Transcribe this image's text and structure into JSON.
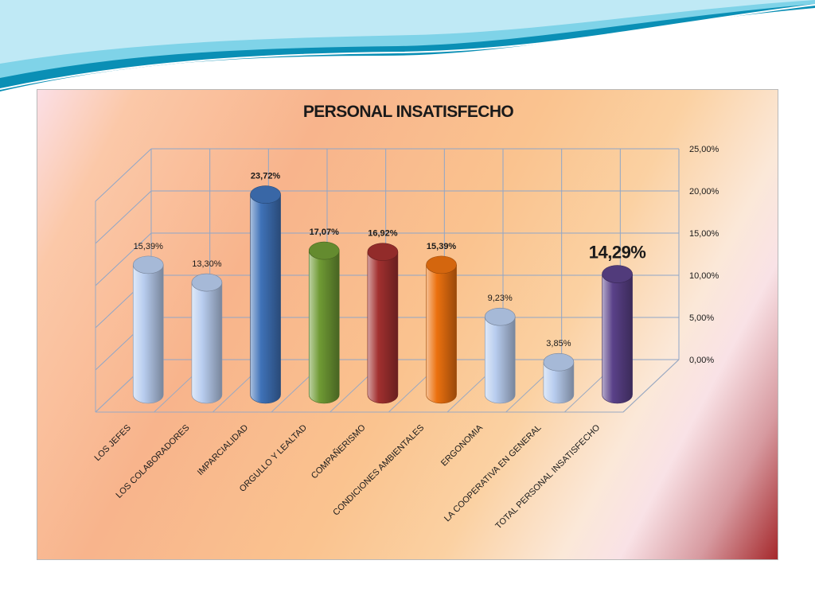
{
  "slide": {
    "wave_colors": [
      "#0a8fb5",
      "#7fd3e8",
      "#bfe9f5"
    ]
  },
  "chart_data": {
    "type": "bar",
    "title": "PERSONAL INSATISFECHO",
    "xlabel": "",
    "ylabel": "",
    "ylim": [
      0,
      25
    ],
    "y_ticks": [
      "0,00%",
      "5,00%",
      "10,00%",
      "15,00%",
      "20,00%",
      "25,00%"
    ],
    "grid": true,
    "legend": "none",
    "categories": [
      "LOS JEFES",
      "LOS COLABORADORES",
      "IMPARCIALIDAD",
      "ORGULLO Y LEALTAD",
      "COMPAÑERISMO",
      "CONDICIONES  AMBIENTALES",
      "ERGONOMIA",
      "LA COOPERATIVA EN GENERAL",
      "TOTAL PERSONAL  INSATISFECHO"
    ],
    "values": [
      15.39,
      13.3,
      23.72,
      17.07,
      16.92,
      15.39,
      9.23,
      3.85,
      14.29
    ],
    "data_labels": [
      "15,39%",
      "13,30%",
      "23,72%",
      "17,07%",
      "16,92%",
      "15,39%",
      "9,23%",
      "3,85%",
      "14,29%"
    ],
    "label_styles": [
      "normal",
      "normal",
      "bold",
      "bold",
      "bold",
      "bold",
      "normal",
      "normal",
      "big"
    ],
    "colors": [
      "#b8cdef",
      "#b8cdef",
      "#3f72b8",
      "#6f9a34",
      "#a2302f",
      "#ec710f",
      "#b8cdef",
      "#b8cdef",
      "#5a4189"
    ]
  }
}
